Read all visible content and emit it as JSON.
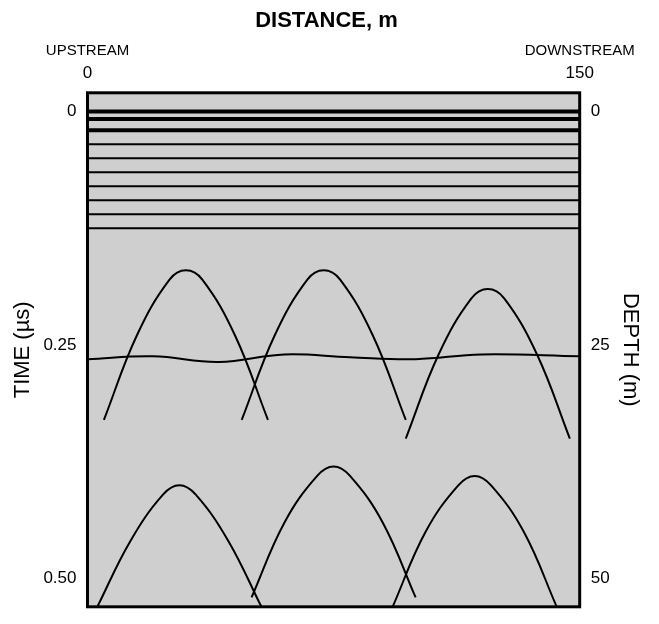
{
  "chart_data": {
    "type": "line",
    "title": "DISTANCE, m",
    "x_label": "DISTANCE, m",
    "y_label": "TIME (µs)",
    "y2_label": "DEPTH (m)",
    "annotations": [
      {
        "text": "UPSTREAM",
        "x": 0
      },
      {
        "text": "DOWNSTREAM",
        "x": 150
      }
    ],
    "xlim": [
      0,
      150
    ],
    "xticks": [
      0,
      150
    ],
    "ylim": [
      -0.02,
      0.53
    ],
    "yticks": [
      0,
      0.25,
      {
        "value": 0.5,
        "label": "0.50"
      }
    ],
    "y2lim": [
      -2,
      53
    ],
    "y2ticks": [
      0,
      25,
      50
    ],
    "grid": false,
    "legend": null,
    "series": [
      {
        "color": "#000000",
        "x": [
          0,
          150
        ],
        "values": [
          0,
          0
        ]
      },
      {
        "color": "#000000",
        "x": [
          0,
          150
        ],
        "values": [
          0.008,
          0.008
        ]
      },
      {
        "color": "#000000",
        "x": [
          0,
          150
        ],
        "values": [
          0.02,
          0.02
        ]
      },
      {
        "color": "#000000",
        "x": [
          0,
          150
        ],
        "values": [
          0.035,
          0.035
        ]
      },
      {
        "color": "#000000",
        "x": [
          0,
          150
        ],
        "values": [
          0.05,
          0.05
        ]
      },
      {
        "color": "#000000",
        "x": [
          0,
          150
        ],
        "values": [
          0.065,
          0.065
        ]
      },
      {
        "color": "#000000",
        "x": [
          0,
          150
        ],
        "values": [
          0.08,
          0.08
        ]
      },
      {
        "color": "#000000",
        "x": [
          0,
          150
        ],
        "values": [
          0.095,
          0.095
        ]
      },
      {
        "color": "#000000",
        "x": [
          0,
          150
        ],
        "values": [
          0.11,
          0.11
        ]
      },
      {
        "color": "#000000",
        "x": [
          0,
          150
        ],
        "values": [
          0.125,
          0.125
        ]
      },
      {
        "color": "#000000",
        "x": [
          0,
          20,
          40,
          60,
          80,
          100,
          120,
          150
        ],
        "values": [
          0.265,
          0.262,
          0.268,
          0.26,
          0.263,
          0.265,
          0.26,
          0.262
        ]
      },
      {
        "color": "#000000",
        "x": [
          5,
          15,
          25,
          30,
          35,
          45,
          55
        ],
        "values": [
          0.33,
          0.24,
          0.18,
          0.17,
          0.18,
          0.24,
          0.33
        ]
      },
      {
        "color": "#000000",
        "x": [
          47,
          57,
          67,
          72,
          77,
          87,
          97
        ],
        "values": [
          0.33,
          0.24,
          0.18,
          0.17,
          0.18,
          0.24,
          0.33
        ]
      },
      {
        "color": "#000000",
        "x": [
          97,
          107,
          117,
          122,
          127,
          137,
          147
        ],
        "values": [
          0.35,
          0.26,
          0.2,
          0.19,
          0.2,
          0.26,
          0.35
        ]
      },
      {
        "color": "#000000",
        "x": [
          3,
          13,
          23,
          28,
          33,
          43,
          53
        ],
        "values": [
          0.53,
          0.46,
          0.41,
          0.4,
          0.41,
          0.46,
          0.53
        ]
      },
      {
        "color": "#000000",
        "x": [
          50,
          60,
          70,
          75,
          80,
          90,
          100
        ],
        "values": [
          0.52,
          0.44,
          0.39,
          0.38,
          0.39,
          0.44,
          0.52
        ]
      },
      {
        "color": "#000000",
        "x": [
          93,
          103,
          113,
          118,
          123,
          133,
          143
        ],
        "values": [
          0.53,
          0.45,
          0.4,
          0.39,
          0.4,
          0.45,
          0.53
        ]
      }
    ]
  }
}
